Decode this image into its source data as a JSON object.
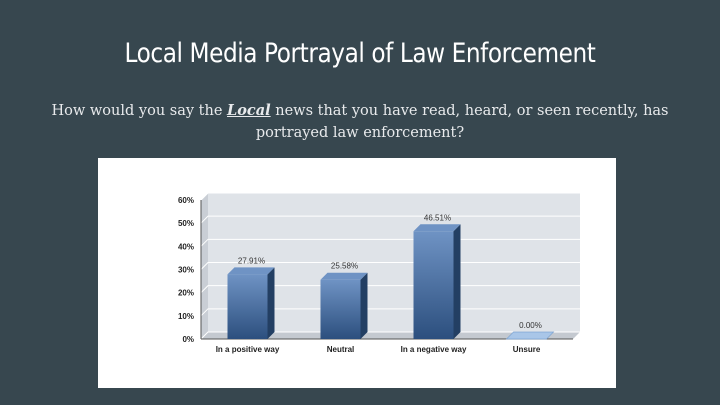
{
  "slide": {
    "title": "Local Media Portrayal of Law Enforcement",
    "question_before": "How would you say the ",
    "question_emphasis": "Local",
    "question_after": " news that you have read, heard, or seen recently, has portrayed law enforcement?"
  },
  "colors": {
    "background": "#37474f",
    "bar_light": "#6f93c4",
    "bar_dark": "#2c4f7e",
    "bar_side": "#233f63",
    "plot_back": "#dfe3e8"
  },
  "chart_data": {
    "type": "bar",
    "categories": [
      "In a positive way",
      "Neutral",
      "In a negative way",
      "Unsure"
    ],
    "values": [
      27.91,
      25.58,
      46.51,
      0.0
    ],
    "data_labels": [
      "27.91%",
      "25.58%",
      "46.51%",
      "0.00%"
    ],
    "y_ticks": [
      "0%",
      "10%",
      "20%",
      "30%",
      "40%",
      "50%",
      "60%"
    ],
    "ylim": [
      0,
      60
    ],
    "grid": true,
    "title": "",
    "xlabel": "",
    "ylabel": ""
  }
}
